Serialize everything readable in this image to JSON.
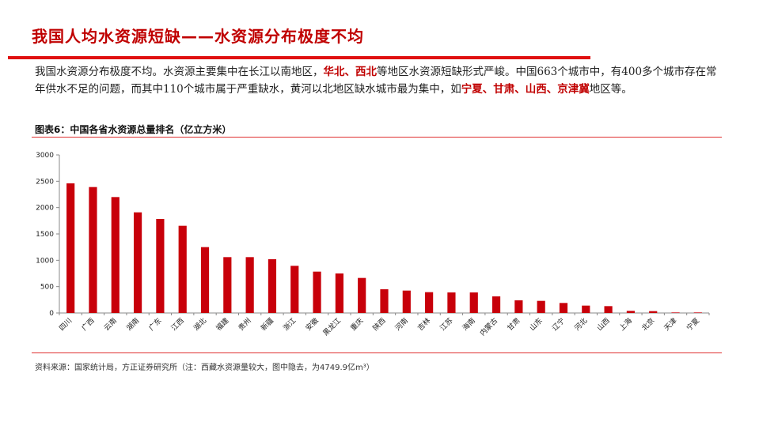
{
  "page": {
    "title": "我国人均水资源短缺——水资源分布极度不均",
    "intro_parts": [
      {
        "text": "我国水资源分布极度不均。水资源主要集中在长江以南地区，",
        "hl": false
      },
      {
        "text": "华北、西北",
        "hl": true
      },
      {
        "text": "等地区水资源短缺形式严峻。中国663个城市中，有400多个城市存在常年供水不足的问题，而其中110个城市属于严重缺水，黄河以北地区缺水城市最为集中，如",
        "hl": false
      },
      {
        "text": "宁夏、甘肃、山西、京津冀",
        "hl": true
      },
      {
        "text": "地区等。",
        "hl": false
      }
    ],
    "figure_title": "图表6：中国各省水资源总量排名（亿立方米）",
    "source": "资料来源：国家统计局，方正证券研究所（注：西藏水资源量较大，图中隐去，为4749.9亿m³）"
  },
  "colors": {
    "accent": "#c00000",
    "bar": "#c8000a",
    "rule": "#e01010"
  },
  "chart_data": {
    "type": "bar",
    "title": "",
    "xlabel": "",
    "ylabel": "",
    "ylim": [
      0,
      3000
    ],
    "yticks": [
      0,
      500,
      1000,
      1500,
      2000,
      2500,
      3000
    ],
    "grid": false,
    "legend": "none",
    "categories": [
      "四川",
      "广西",
      "云南",
      "湖南",
      "广东",
      "江西",
      "湖北",
      "福建",
      "贵州",
      "新疆",
      "浙江",
      "安徽",
      "黑龙江",
      "重庆",
      "陕西",
      "河南",
      "吉林",
      "江苏",
      "海南",
      "内蒙古",
      "甘肃",
      "山东",
      "辽宁",
      "河北",
      "山西",
      "上海",
      "北京",
      "天津",
      "宁夏"
    ],
    "values": [
      2460,
      2390,
      2200,
      1910,
      1785,
      1655,
      1250,
      1060,
      1060,
      1020,
      895,
      785,
      750,
      665,
      450,
      425,
      395,
      390,
      390,
      315,
      240,
      230,
      190,
      140,
      130,
      40,
      35,
      10,
      10
    ]
  }
}
